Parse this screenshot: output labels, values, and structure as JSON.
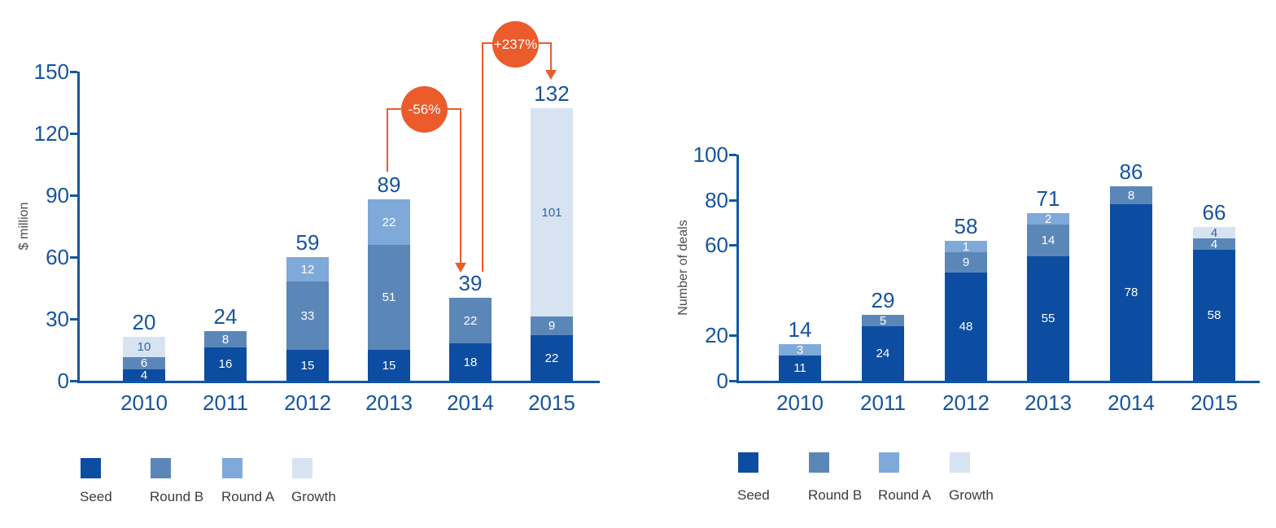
{
  "page": {
    "background": "#ffffff"
  },
  "colors": {
    "seed": "#0c4da2",
    "round_b": "#5b87b8",
    "round_a": "#7fa9d9",
    "growth": "#d8e3f2",
    "axis": "#1257a0",
    "tick_text": "#15549f",
    "annotation_orange": "#ec5b2b",
    "segment_text": "#ffffff",
    "segment_text_on_light": "#2f62a8",
    "legend_text": "#3c3c3b",
    "axis_title_text": "#4d4d4d"
  },
  "chart_data": [
    {
      "type": "bar",
      "stacked": true,
      "title": "",
      "xlabel": "",
      "ylabel": "$ million",
      "ylim": [
        0,
        150
      ],
      "yticks": [
        150,
        120,
        90,
        60,
        30,
        0
      ],
      "grid": false,
      "legend_position": "bottom-left",
      "categories": [
        "2010",
        "2011",
        "2012",
        "2013",
        "2014",
        "2015"
      ],
      "series": [
        {
          "name": "Seed",
          "values": [
            4,
            16,
            15,
            15,
            18,
            22
          ]
        },
        {
          "name": "Round B",
          "values": [
            6,
            8,
            33,
            51,
            22,
            9
          ]
        },
        {
          "name": "Round A",
          "values": [
            null,
            null,
            12,
            22,
            null,
            null
          ]
        },
        {
          "name": "Growth",
          "values": [
            10,
            null,
            null,
            null,
            null,
            101
          ]
        }
      ],
      "totals": [
        20,
        24,
        59,
        89,
        39,
        132
      ],
      "annotations": [
        {
          "label": "-56%",
          "from_category": "2013",
          "to_category": "2014"
        },
        {
          "label": "+237%",
          "from_category": "2014",
          "to_category": "2015"
        }
      ],
      "legend": [
        "Seed",
        "Round B",
        "Round A",
        "Growth"
      ]
    },
    {
      "type": "bar",
      "stacked": true,
      "title": "",
      "xlabel": "",
      "ylabel": "Number of deals",
      "ylim": [
        0,
        100
      ],
      "yticks": [
        100,
        80,
        60,
        20,
        0
      ],
      "grid": false,
      "legend_position": "bottom-left",
      "categories": [
        "2010",
        "2011",
        "2012",
        "2013",
        "2014",
        "2015"
      ],
      "series": [
        {
          "name": "Seed",
          "values": [
            11,
            24,
            48,
            55,
            78,
            58
          ]
        },
        {
          "name": "Round B",
          "values": [
            null,
            5,
            9,
            14,
            8,
            4
          ]
        },
        {
          "name": "Round A",
          "values": [
            3,
            null,
            1,
            2,
            null,
            null
          ]
        },
        {
          "name": "Growth",
          "values": [
            null,
            null,
            null,
            null,
            null,
            4
          ]
        }
      ],
      "totals": [
        14,
        29,
        58,
        71,
        86,
        66
      ],
      "annotations": [],
      "legend": [
        "Seed",
        "Round B",
        "Round A",
        "Growth"
      ]
    }
  ]
}
